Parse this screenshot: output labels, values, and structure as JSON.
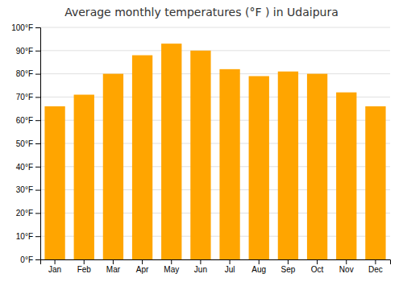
{
  "chart_data": {
    "type": "bar",
    "title": "Average monthly temperatures (°F ) in Udaipura",
    "categories": [
      "Jan",
      "Feb",
      "Mar",
      "Apr",
      "May",
      "Jun",
      "Jul",
      "Aug",
      "Sep",
      "Oct",
      "Nov",
      "Dec"
    ],
    "values": [
      66,
      71,
      80,
      88,
      93,
      90,
      82,
      79,
      81,
      80,
      72,
      66
    ],
    "color": "#FFA500",
    "ylim": [
      0,
      100
    ],
    "yticks": [
      {
        "value": 0,
        "label": "0°F"
      },
      {
        "value": 10,
        "label": "10°F"
      },
      {
        "value": 20,
        "label": "20°F"
      },
      {
        "value": 30,
        "label": "30°F"
      },
      {
        "value": 40,
        "label": "40°F"
      },
      {
        "value": 50,
        "label": "50°F"
      },
      {
        "value": 60,
        "label": "60°F"
      },
      {
        "value": 70,
        "label": "70°F"
      },
      {
        "value": 80,
        "label": "80°F"
      },
      {
        "value": 90,
        "label": "90°F"
      },
      {
        "value": 100,
        "label": "100°F"
      }
    ],
    "grid": true
  }
}
